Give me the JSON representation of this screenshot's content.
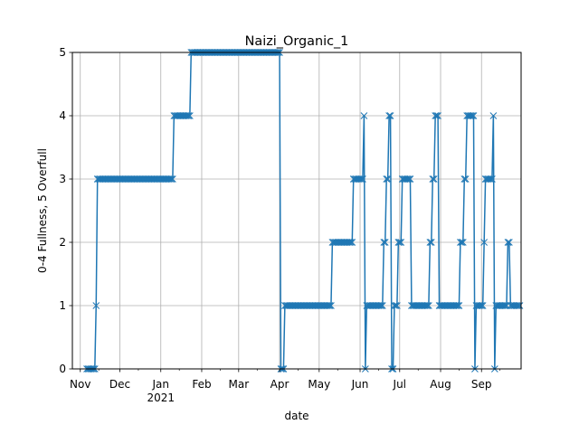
{
  "chart_data": {
    "type": "line",
    "title": "Naizi_Organic_1",
    "xlabel": "date",
    "ylabel": "0-4 Fullness, 5 Overfull",
    "ylim": [
      0,
      5
    ],
    "xlim": [
      "2020-10-26",
      "2021-10-01"
    ],
    "grid": true,
    "yticks": [
      "0",
      "1",
      "2",
      "3",
      "4",
      "5"
    ],
    "xticks": [
      {
        "date": "2020-11-01",
        "label": "Nov",
        "sublabel": ""
      },
      {
        "date": "2020-12-01",
        "label": "Dec",
        "sublabel": ""
      },
      {
        "date": "2021-01-01",
        "label": "Jan",
        "sublabel": "2021"
      },
      {
        "date": "2021-02-01",
        "label": "Feb",
        "sublabel": ""
      },
      {
        "date": "2021-03-01",
        "label": "Mar",
        "sublabel": ""
      },
      {
        "date": "2021-04-01",
        "label": "Apr",
        "sublabel": ""
      },
      {
        "date": "2021-05-01",
        "label": "May",
        "sublabel": ""
      },
      {
        "date": "2021-06-01",
        "label": "Jun",
        "sublabel": ""
      },
      {
        "date": "2021-07-01",
        "label": "Jul",
        "sublabel": ""
      },
      {
        "date": "2021-08-01",
        "label": "Aug",
        "sublabel": ""
      },
      {
        "date": "2021-09-01",
        "label": "Sep",
        "sublabel": ""
      }
    ],
    "color": "#1f77b4",
    "marker": "x",
    "points": [
      [
        "2020-11-06",
        0
      ],
      [
        "2020-11-07",
        0
      ],
      [
        "2020-11-08",
        0
      ],
      [
        "2020-11-09",
        0
      ],
      [
        "2020-11-10",
        0
      ],
      [
        "2020-11-11",
        0
      ],
      [
        "2020-11-12",
        0
      ],
      [
        "2020-11-13",
        1
      ],
      [
        "2020-11-14",
        3
      ],
      [
        "2020-11-15",
        3
      ],
      [
        "2020-11-16",
        3
      ],
      [
        "2020-11-17",
        3
      ],
      [
        "2020-11-18",
        3
      ],
      [
        "2020-11-19",
        3
      ],
      [
        "2020-11-20",
        3
      ],
      [
        "2020-11-21",
        3
      ],
      [
        "2020-11-22",
        3
      ],
      [
        "2020-11-23",
        3
      ],
      [
        "2020-11-24",
        3
      ],
      [
        "2020-11-25",
        3
      ],
      [
        "2020-11-26",
        3
      ],
      [
        "2020-11-27",
        3
      ],
      [
        "2020-11-28",
        3
      ],
      [
        "2020-11-29",
        3
      ],
      [
        "2020-11-30",
        3
      ],
      [
        "2020-12-01",
        3
      ],
      [
        "2020-12-02",
        3
      ],
      [
        "2020-12-03",
        3
      ],
      [
        "2020-12-04",
        3
      ],
      [
        "2020-12-05",
        3
      ],
      [
        "2020-12-06",
        3
      ],
      [
        "2020-12-07",
        3
      ],
      [
        "2020-12-08",
        3
      ],
      [
        "2020-12-09",
        3
      ],
      [
        "2020-12-10",
        3
      ],
      [
        "2020-12-11",
        3
      ],
      [
        "2020-12-12",
        3
      ],
      [
        "2020-12-13",
        3
      ],
      [
        "2020-12-14",
        3
      ],
      [
        "2020-12-15",
        3
      ],
      [
        "2020-12-16",
        3
      ],
      [
        "2020-12-17",
        3
      ],
      [
        "2020-12-18",
        3
      ],
      [
        "2020-12-19",
        3
      ],
      [
        "2020-12-20",
        3
      ],
      [
        "2020-12-21",
        3
      ],
      [
        "2020-12-22",
        3
      ],
      [
        "2020-12-23",
        3
      ],
      [
        "2020-12-24",
        3
      ],
      [
        "2020-12-25",
        3
      ],
      [
        "2020-12-26",
        3
      ],
      [
        "2020-12-27",
        3
      ],
      [
        "2020-12-28",
        3
      ],
      [
        "2020-12-29",
        3
      ],
      [
        "2020-12-30",
        3
      ],
      [
        "2020-12-31",
        3
      ],
      [
        "2021-01-01",
        3
      ],
      [
        "2021-01-02",
        3
      ],
      [
        "2021-01-03",
        3
      ],
      [
        "2021-01-04",
        3
      ],
      [
        "2021-01-05",
        3
      ],
      [
        "2021-01-06",
        3
      ],
      [
        "2021-01-07",
        3
      ],
      [
        "2021-01-08",
        3
      ],
      [
        "2021-01-09",
        3
      ],
      [
        "2021-01-10",
        3
      ],
      [
        "2021-01-11",
        4
      ],
      [
        "2021-01-12",
        4
      ],
      [
        "2021-01-13",
        4
      ],
      [
        "2021-01-14",
        4
      ],
      [
        "2021-01-15",
        4
      ],
      [
        "2021-01-16",
        4
      ],
      [
        "2021-01-17",
        4
      ],
      [
        "2021-01-18",
        4
      ],
      [
        "2021-01-19",
        4
      ],
      [
        "2021-01-20",
        4
      ],
      [
        "2021-01-21",
        4
      ],
      [
        "2021-01-22",
        4
      ],
      [
        "2021-01-23",
        4
      ],
      [
        "2021-01-24",
        5
      ],
      [
        "2021-01-25",
        5
      ],
      [
        "2021-01-26",
        5
      ],
      [
        "2021-01-27",
        5
      ],
      [
        "2021-01-28",
        5
      ],
      [
        "2021-01-29",
        5
      ],
      [
        "2021-01-30",
        5
      ],
      [
        "2021-01-31",
        5
      ],
      [
        "2021-02-01",
        5
      ],
      [
        "2021-02-02",
        5
      ],
      [
        "2021-02-03",
        5
      ],
      [
        "2021-02-04",
        5
      ],
      [
        "2021-02-05",
        5
      ],
      [
        "2021-02-06",
        5
      ],
      [
        "2021-02-07",
        5
      ],
      [
        "2021-02-08",
        5
      ],
      [
        "2021-02-09",
        5
      ],
      [
        "2021-02-10",
        5
      ],
      [
        "2021-02-11",
        5
      ],
      [
        "2021-02-12",
        5
      ],
      [
        "2021-02-13",
        5
      ],
      [
        "2021-02-14",
        5
      ],
      [
        "2021-02-15",
        5
      ],
      [
        "2021-02-16",
        5
      ],
      [
        "2021-02-17",
        5
      ],
      [
        "2021-02-18",
        5
      ],
      [
        "2021-02-19",
        5
      ],
      [
        "2021-02-20",
        5
      ],
      [
        "2021-02-21",
        5
      ],
      [
        "2021-02-22",
        5
      ],
      [
        "2021-02-23",
        5
      ],
      [
        "2021-02-24",
        5
      ],
      [
        "2021-02-25",
        5
      ],
      [
        "2021-02-26",
        5
      ],
      [
        "2021-02-27",
        5
      ],
      [
        "2021-02-28",
        5
      ],
      [
        "2021-03-01",
        5
      ],
      [
        "2021-03-02",
        5
      ],
      [
        "2021-03-03",
        5
      ],
      [
        "2021-03-04",
        5
      ],
      [
        "2021-03-05",
        5
      ],
      [
        "2021-03-06",
        5
      ],
      [
        "2021-03-07",
        5
      ],
      [
        "2021-03-08",
        5
      ],
      [
        "2021-03-09",
        5
      ],
      [
        "2021-03-10",
        5
      ],
      [
        "2021-03-11",
        5
      ],
      [
        "2021-03-12",
        5
      ],
      [
        "2021-03-13",
        5
      ],
      [
        "2021-03-14",
        5
      ],
      [
        "2021-03-15",
        5
      ],
      [
        "2021-03-16",
        5
      ],
      [
        "2021-03-17",
        5
      ],
      [
        "2021-03-18",
        5
      ],
      [
        "2021-03-19",
        5
      ],
      [
        "2021-03-20",
        5
      ],
      [
        "2021-03-21",
        5
      ],
      [
        "2021-03-22",
        5
      ],
      [
        "2021-03-23",
        5
      ],
      [
        "2021-03-24",
        5
      ],
      [
        "2021-03-25",
        5
      ],
      [
        "2021-03-26",
        5
      ],
      [
        "2021-03-27",
        5
      ],
      [
        "2021-03-28",
        5
      ],
      [
        "2021-03-29",
        5
      ],
      [
        "2021-03-30",
        5
      ],
      [
        "2021-03-31",
        5
      ],
      [
        "2021-04-01",
        5
      ],
      [
        "2021-04-02",
        0
      ],
      [
        "2021-04-03",
        0
      ],
      [
        "2021-04-04",
        0
      ],
      [
        "2021-04-05",
        1
      ],
      [
        "2021-04-06",
        1
      ],
      [
        "2021-04-07",
        1
      ],
      [
        "2021-04-08",
        1
      ],
      [
        "2021-04-09",
        1
      ],
      [
        "2021-04-10",
        1
      ],
      [
        "2021-04-11",
        1
      ],
      [
        "2021-04-12",
        1
      ],
      [
        "2021-04-13",
        1
      ],
      [
        "2021-04-14",
        1
      ],
      [
        "2021-04-15",
        1
      ],
      [
        "2021-04-16",
        1
      ],
      [
        "2021-04-17",
        1
      ],
      [
        "2021-04-18",
        1
      ],
      [
        "2021-04-19",
        1
      ],
      [
        "2021-04-20",
        1
      ],
      [
        "2021-04-21",
        1
      ],
      [
        "2021-04-22",
        1
      ],
      [
        "2021-04-23",
        1
      ],
      [
        "2021-04-24",
        1
      ],
      [
        "2021-04-25",
        1
      ],
      [
        "2021-04-26",
        1
      ],
      [
        "2021-04-27",
        1
      ],
      [
        "2021-04-28",
        1
      ],
      [
        "2021-04-29",
        1
      ],
      [
        "2021-04-30",
        1
      ],
      [
        "2021-05-01",
        1
      ],
      [
        "2021-05-02",
        1
      ],
      [
        "2021-05-03",
        1
      ],
      [
        "2021-05-04",
        1
      ],
      [
        "2021-05-05",
        1
      ],
      [
        "2021-05-06",
        1
      ],
      [
        "2021-05-07",
        1
      ],
      [
        "2021-05-08",
        1
      ],
      [
        "2021-05-09",
        1
      ],
      [
        "2021-05-10",
        1
      ],
      [
        "2021-05-11",
        2
      ],
      [
        "2021-05-12",
        2
      ],
      [
        "2021-05-13",
        2
      ],
      [
        "2021-05-14",
        2
      ],
      [
        "2021-05-15",
        2
      ],
      [
        "2021-05-16",
        2
      ],
      [
        "2021-05-17",
        2
      ],
      [
        "2021-05-18",
        2
      ],
      [
        "2021-05-19",
        2
      ],
      [
        "2021-05-20",
        2
      ],
      [
        "2021-05-21",
        2
      ],
      [
        "2021-05-22",
        2
      ],
      [
        "2021-05-23",
        2
      ],
      [
        "2021-05-24",
        2
      ],
      [
        "2021-05-25",
        2
      ],
      [
        "2021-05-26",
        2
      ],
      [
        "2021-05-27",
        3
      ],
      [
        "2021-05-28",
        3
      ],
      [
        "2021-05-29",
        3
      ],
      [
        "2021-05-30",
        3
      ],
      [
        "2021-05-31",
        3
      ],
      [
        "2021-06-01",
        3
      ],
      [
        "2021-06-02",
        3
      ],
      [
        "2021-06-03",
        3
      ],
      [
        "2021-06-04",
        4
      ],
      [
        "2021-06-05",
        0
      ],
      [
        "2021-06-06",
        1
      ],
      [
        "2021-06-07",
        1
      ],
      [
        "2021-06-08",
        1
      ],
      [
        "2021-06-09",
        1
      ],
      [
        "2021-06-10",
        1
      ],
      [
        "2021-06-11",
        1
      ],
      [
        "2021-06-12",
        1
      ],
      [
        "2021-06-13",
        1
      ],
      [
        "2021-06-14",
        1
      ],
      [
        "2021-06-15",
        1
      ],
      [
        "2021-06-16",
        1
      ],
      [
        "2021-06-17",
        1
      ],
      [
        "2021-06-18",
        1
      ],
      [
        "2021-06-19",
        2
      ],
      [
        "2021-06-20",
        2
      ],
      [
        "2021-06-21",
        3
      ],
      [
        "2021-06-22",
        3
      ],
      [
        "2021-06-23",
        4
      ],
      [
        "2021-06-24",
        4
      ],
      [
        "2021-06-25",
        0
      ],
      [
        "2021-06-26",
        0
      ],
      [
        "2021-06-27",
        1
      ],
      [
        "2021-06-28",
        1
      ],
      [
        "2021-06-29",
        1
      ],
      [
        "2021-06-30",
        2
      ],
      [
        "2021-07-01",
        2
      ],
      [
        "2021-07-02",
        2
      ],
      [
        "2021-07-03",
        3
      ],
      [
        "2021-07-04",
        3
      ],
      [
        "2021-07-05",
        3
      ],
      [
        "2021-07-06",
        3
      ],
      [
        "2021-07-07",
        3
      ],
      [
        "2021-07-08",
        3
      ],
      [
        "2021-07-09",
        3
      ],
      [
        "2021-07-10",
        1
      ],
      [
        "2021-07-11",
        1
      ],
      [
        "2021-07-12",
        1
      ],
      [
        "2021-07-13",
        1
      ],
      [
        "2021-07-14",
        1
      ],
      [
        "2021-07-15",
        1
      ],
      [
        "2021-07-16",
        1
      ],
      [
        "2021-07-17",
        1
      ],
      [
        "2021-07-18",
        1
      ],
      [
        "2021-07-19",
        1
      ],
      [
        "2021-07-20",
        1
      ],
      [
        "2021-07-21",
        1
      ],
      [
        "2021-07-22",
        1
      ],
      [
        "2021-07-23",
        1
      ],
      [
        "2021-07-24",
        2
      ],
      [
        "2021-07-25",
        2
      ],
      [
        "2021-07-26",
        3
      ],
      [
        "2021-07-27",
        3
      ],
      [
        "2021-07-28",
        4
      ],
      [
        "2021-07-29",
        4
      ],
      [
        "2021-07-30",
        4
      ],
      [
        "2021-07-31",
        1
      ],
      [
        "2021-08-01",
        1
      ],
      [
        "2021-08-02",
        1
      ],
      [
        "2021-08-03",
        1
      ],
      [
        "2021-08-04",
        1
      ],
      [
        "2021-08-05",
        1
      ],
      [
        "2021-08-06",
        1
      ],
      [
        "2021-08-07",
        1
      ],
      [
        "2021-08-08",
        1
      ],
      [
        "2021-08-09",
        1
      ],
      [
        "2021-08-10",
        1
      ],
      [
        "2021-08-11",
        1
      ],
      [
        "2021-08-12",
        1
      ],
      [
        "2021-08-13",
        1
      ],
      [
        "2021-08-14",
        1
      ],
      [
        "2021-08-15",
        1
      ],
      [
        "2021-08-16",
        2
      ],
      [
        "2021-08-17",
        2
      ],
      [
        "2021-08-18",
        2
      ],
      [
        "2021-08-19",
        3
      ],
      [
        "2021-08-20",
        3
      ],
      [
        "2021-08-21",
        4
      ],
      [
        "2021-08-22",
        4
      ],
      [
        "2021-08-23",
        4
      ],
      [
        "2021-08-24",
        4
      ],
      [
        "2021-08-25",
        4
      ],
      [
        "2021-08-26",
        4
      ],
      [
        "2021-08-27",
        0
      ],
      [
        "2021-08-28",
        1
      ],
      [
        "2021-08-29",
        1
      ],
      [
        "2021-08-30",
        1
      ],
      [
        "2021-08-31",
        1
      ],
      [
        "2021-09-01",
        1
      ],
      [
        "2021-09-02",
        1
      ],
      [
        "2021-09-03",
        2
      ],
      [
        "2021-09-04",
        3
      ],
      [
        "2021-09-05",
        3
      ],
      [
        "2021-09-06",
        3
      ],
      [
        "2021-09-07",
        3
      ],
      [
        "2021-09-08",
        3
      ],
      [
        "2021-09-09",
        3
      ],
      [
        "2021-09-10",
        4
      ],
      [
        "2021-09-11",
        0
      ],
      [
        "2021-09-12",
        1
      ],
      [
        "2021-09-13",
        1
      ],
      [
        "2021-09-14",
        1
      ],
      [
        "2021-09-15",
        1
      ],
      [
        "2021-09-16",
        1
      ],
      [
        "2021-09-17",
        1
      ],
      [
        "2021-09-18",
        1
      ],
      [
        "2021-09-19",
        1
      ],
      [
        "2021-09-20",
        1
      ],
      [
        "2021-09-21",
        2
      ],
      [
        "2021-09-22",
        2
      ],
      [
        "2021-09-23",
        1
      ],
      [
        "2021-09-24",
        1
      ],
      [
        "2021-09-25",
        1
      ],
      [
        "2021-09-26",
        1
      ],
      [
        "2021-09-27",
        1
      ],
      [
        "2021-09-28",
        1
      ],
      [
        "2021-09-29",
        1
      ],
      [
        "2021-09-30",
        1
      ]
    ]
  }
}
